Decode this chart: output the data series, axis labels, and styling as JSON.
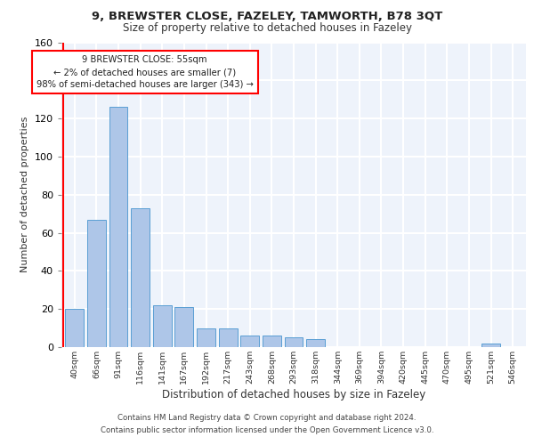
{
  "title1": "9, BREWSTER CLOSE, FAZELEY, TAMWORTH, B78 3QT",
  "title2": "Size of property relative to detached houses in Fazeley",
  "xlabel": "Distribution of detached houses by size in Fazeley",
  "ylabel": "Number of detached properties",
  "bin_labels": [
    "40sqm",
    "66sqm",
    "91sqm",
    "116sqm",
    "141sqm",
    "167sqm",
    "192sqm",
    "217sqm",
    "243sqm",
    "268sqm",
    "293sqm",
    "318sqm",
    "344sqm",
    "369sqm",
    "394sqm",
    "420sqm",
    "445sqm",
    "470sqm",
    "495sqm",
    "521sqm",
    "546sqm"
  ],
  "bar_values": [
    20,
    67,
    126,
    73,
    22,
    21,
    10,
    10,
    6,
    6,
    5,
    4,
    0,
    0,
    0,
    0,
    0,
    0,
    0,
    2,
    0
  ],
  "bar_color": "#aec6e8",
  "bar_edge_color": "#5a9fd4",
  "annotation_line1": "9 BREWSTER CLOSE: 55sqm",
  "annotation_line2": "← 2% of detached houses are smaller (7)",
  "annotation_line3": "98% of semi-detached houses are larger (343) →",
  "annotation_box_color": "white",
  "annotation_box_edge": "red",
  "red_line_x": -0.5,
  "ylim": [
    0,
    160
  ],
  "yticks": [
    0,
    20,
    40,
    60,
    80,
    100,
    120,
    140,
    160
  ],
  "footer1": "Contains HM Land Registry data © Crown copyright and database right 2024.",
  "footer2": "Contains public sector information licensed under the Open Government Licence v3.0.",
  "bg_color": "#eef3fb",
  "grid_color": "#ffffff"
}
